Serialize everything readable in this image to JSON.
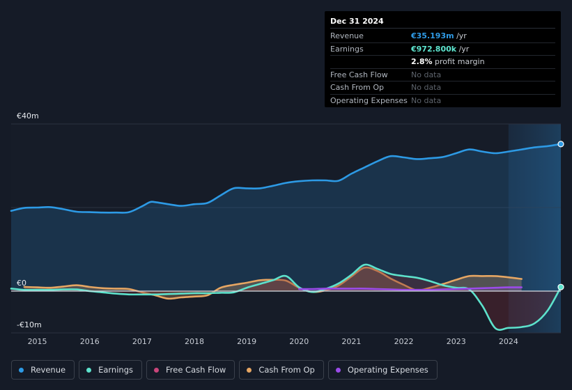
{
  "tooltip": {
    "date": "Dec 31 2024",
    "rows": [
      {
        "label": "Revenue",
        "value": "€35.193m",
        "unit": " /yr"
      },
      {
        "label": "Earnings",
        "value": "€972.800k",
        "unit": " /yr"
      },
      {
        "label": "",
        "value": "2.8%",
        "unit": " profit margin"
      },
      {
        "label": "Free Cash Flow",
        "value": "No data"
      },
      {
        "label": "Cash From Op",
        "value": "No data"
      },
      {
        "label": "Operating Expenses",
        "value": "No data"
      }
    ]
  },
  "colors": {
    "revenue": "#2d9ae5",
    "earnings": "#5de2cc",
    "free_cash_flow": "#c9457a",
    "cash_from_op": "#e6a663",
    "operating_expenses": "#9b4be9",
    "background": "#151b27"
  },
  "legend": [
    {
      "key": "revenue",
      "label": "Revenue"
    },
    {
      "key": "earnings",
      "label": "Earnings"
    },
    {
      "key": "free_cash_flow",
      "label": "Free Cash Flow"
    },
    {
      "key": "cash_from_op",
      "label": "Cash From Op"
    },
    {
      "key": "operating_expenses",
      "label": "Operating Expenses"
    }
  ],
  "chart_data": {
    "type": "area",
    "title": "",
    "ylim": [
      -10,
      40
    ],
    "y_tick_labels": {
      "top": "€40m",
      "zero": "€0",
      "bottom": "-€10m"
    },
    "x_tick_labels": [
      "2015",
      "2016",
      "2017",
      "2018",
      "2019",
      "2020",
      "2021",
      "2022",
      "2023",
      "2024"
    ],
    "x_ticks": [
      2015,
      2016,
      2017,
      2018,
      2019,
      2020,
      2021,
      2022,
      2023,
      2024
    ],
    "x_range": [
      2014.5,
      2025.0
    ],
    "forecast_start": 2024.0,
    "series": [
      {
        "name": "Revenue",
        "key": "revenue",
        "area": true,
        "points": [
          [
            2014.5,
            19.2
          ],
          [
            2014.75,
            19.9
          ],
          [
            2015.0,
            20.0
          ],
          [
            2015.25,
            20.1
          ],
          [
            2015.5,
            19.6
          ],
          [
            2015.75,
            19.0
          ],
          [
            2016.0,
            18.9
          ],
          [
            2016.25,
            18.8
          ],
          [
            2016.5,
            18.8
          ],
          [
            2016.75,
            18.9
          ],
          [
            2017.0,
            20.3
          ],
          [
            2017.15,
            21.3
          ],
          [
            2017.25,
            21.3
          ],
          [
            2017.5,
            20.8
          ],
          [
            2017.75,
            20.4
          ],
          [
            2018.0,
            20.8
          ],
          [
            2018.25,
            21.1
          ],
          [
            2018.5,
            22.9
          ],
          [
            2018.75,
            24.6
          ],
          [
            2019.0,
            24.6
          ],
          [
            2019.25,
            24.6
          ],
          [
            2019.5,
            25.2
          ],
          [
            2019.75,
            25.9
          ],
          [
            2020.0,
            26.3
          ],
          [
            2020.25,
            26.5
          ],
          [
            2020.5,
            26.5
          ],
          [
            2020.75,
            26.4
          ],
          [
            2021.0,
            28.1
          ],
          [
            2021.25,
            29.6
          ],
          [
            2021.5,
            31.1
          ],
          [
            2021.75,
            32.3
          ],
          [
            2022.0,
            32.0
          ],
          [
            2022.25,
            31.6
          ],
          [
            2022.5,
            31.8
          ],
          [
            2022.75,
            32.1
          ],
          [
            2023.0,
            33.0
          ],
          [
            2023.25,
            33.9
          ],
          [
            2023.5,
            33.4
          ],
          [
            2023.75,
            33.0
          ],
          [
            2024.0,
            33.4
          ],
          [
            2024.25,
            33.9
          ],
          [
            2024.5,
            34.4
          ],
          [
            2024.75,
            34.7
          ],
          [
            2025.0,
            35.19
          ]
        ]
      },
      {
        "name": "Earnings",
        "key": "earnings",
        "area": true,
        "points": [
          [
            2014.5,
            0.6
          ],
          [
            2014.75,
            0.3
          ],
          [
            2015.0,
            0.3
          ],
          [
            2015.25,
            0.3
          ],
          [
            2015.5,
            0.4
          ],
          [
            2015.75,
            0.4
          ],
          [
            2016.0,
            0.0
          ],
          [
            2016.25,
            -0.3
          ],
          [
            2016.5,
            -0.6
          ],
          [
            2016.75,
            -0.8
          ],
          [
            2017.0,
            -0.8
          ],
          [
            2017.25,
            -0.8
          ],
          [
            2017.5,
            -0.7
          ],
          [
            2017.75,
            -0.6
          ],
          [
            2018.0,
            -0.5
          ],
          [
            2018.25,
            -0.5
          ],
          [
            2018.5,
            -0.4
          ],
          [
            2018.75,
            -0.3
          ],
          [
            2019.0,
            0.8
          ],
          [
            2019.25,
            1.7
          ],
          [
            2019.5,
            2.6
          ],
          [
            2019.75,
            3.6
          ],
          [
            2020.0,
            0.9
          ],
          [
            2020.25,
            -0.2
          ],
          [
            2020.5,
            0.5
          ],
          [
            2020.75,
            1.8
          ],
          [
            2021.0,
            3.9
          ],
          [
            2021.25,
            6.3
          ],
          [
            2021.5,
            5.3
          ],
          [
            2021.75,
            4.1
          ],
          [
            2022.0,
            3.6
          ],
          [
            2022.25,
            3.2
          ],
          [
            2022.5,
            2.4
          ],
          [
            2022.75,
            1.4
          ],
          [
            2023.0,
            0.8
          ],
          [
            2023.25,
            0.4
          ],
          [
            2023.5,
            -3.5
          ],
          [
            2023.75,
            -8.9
          ],
          [
            2024.0,
            -8.8
          ],
          [
            2024.25,
            -8.6
          ],
          [
            2024.5,
            -7.7
          ],
          [
            2024.75,
            -4.6
          ],
          [
            2025.0,
            0.97
          ]
        ]
      },
      {
        "name": "Free Cash Flow",
        "key": "free_cash_flow",
        "area": false,
        "points": []
      },
      {
        "name": "Cash From Op",
        "key": "cash_from_op",
        "area": true,
        "points": [
          [
            2014.75,
            1.0
          ],
          [
            2015.0,
            0.9
          ],
          [
            2015.25,
            0.8
          ],
          [
            2015.5,
            1.1
          ],
          [
            2015.75,
            1.4
          ],
          [
            2016.0,
            1.0
          ],
          [
            2016.25,
            0.7
          ],
          [
            2016.5,
            0.6
          ],
          [
            2016.75,
            0.5
          ],
          [
            2017.0,
            -0.3
          ],
          [
            2017.25,
            -1.0
          ],
          [
            2017.5,
            -1.8
          ],
          [
            2017.75,
            -1.5
          ],
          [
            2018.0,
            -1.3
          ],
          [
            2018.25,
            -1.0
          ],
          [
            2018.5,
            0.8
          ],
          [
            2018.75,
            1.5
          ],
          [
            2019.0,
            2.0
          ],
          [
            2019.25,
            2.6
          ],
          [
            2019.5,
            2.7
          ],
          [
            2019.75,
            2.5
          ],
          [
            2020.0,
            0.8
          ],
          [
            2020.25,
            -0.2
          ],
          [
            2020.5,
            0.2
          ],
          [
            2020.75,
            1.3
          ],
          [
            2021.0,
            3.5
          ],
          [
            2021.25,
            5.6
          ],
          [
            2021.5,
            4.8
          ],
          [
            2021.75,
            3.0
          ],
          [
            2022.0,
            1.5
          ],
          [
            2022.25,
            0.2
          ],
          [
            2022.5,
            0.8
          ],
          [
            2022.75,
            1.7
          ],
          [
            2023.0,
            2.7
          ],
          [
            2023.25,
            3.6
          ],
          [
            2023.5,
            3.6
          ],
          [
            2023.75,
            3.6
          ],
          [
            2024.0,
            3.3
          ],
          [
            2024.25,
            2.9
          ]
        ]
      },
      {
        "name": "Operating Expenses",
        "key": "operating_expenses",
        "area": true,
        "points": [
          [
            2020.0,
            0.5
          ],
          [
            2020.25,
            0.5
          ],
          [
            2020.5,
            0.6
          ],
          [
            2020.75,
            0.6
          ],
          [
            2021.0,
            0.6
          ],
          [
            2021.25,
            0.6
          ],
          [
            2021.5,
            0.5
          ],
          [
            2021.75,
            0.4
          ],
          [
            2022.0,
            0.3
          ],
          [
            2022.25,
            0.3
          ],
          [
            2022.5,
            0.3
          ],
          [
            2022.75,
            0.4
          ],
          [
            2023.0,
            0.5
          ],
          [
            2023.25,
            0.6
          ],
          [
            2023.5,
            0.7
          ],
          [
            2023.75,
            0.8
          ],
          [
            2024.0,
            0.9
          ],
          [
            2024.25,
            0.9
          ]
        ]
      }
    ]
  }
}
